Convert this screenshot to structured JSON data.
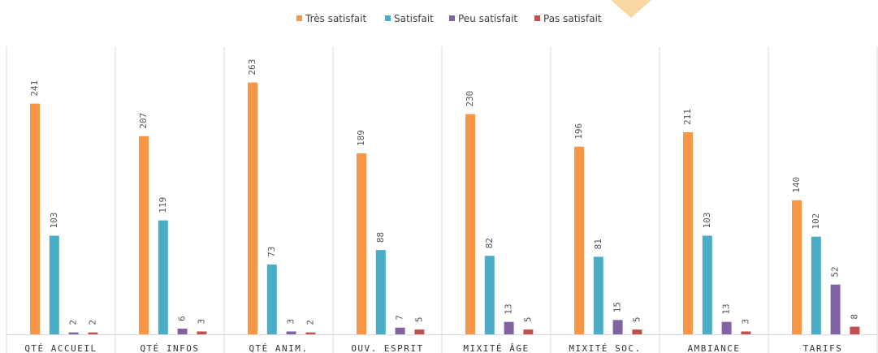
{
  "chart_data": {
    "type": "bar",
    "categories": [
      "QTÉ ACCUEIL",
      "QTÉ INFOS",
      "QTÉ ANIM.",
      "OUV. ESPRIT",
      "MIXITÉ ÂGE",
      "MIXITÉ SOC.",
      "AMBIANCE",
      "TARIFS"
    ],
    "series": [
      {
        "name": "Très satisfait",
        "color": "#F79646",
        "values": [
          241,
          207,
          263,
          189,
          230,
          196,
          211,
          140
        ]
      },
      {
        "name": "Satisfait",
        "color": "#4BACC6",
        "values": [
          103,
          119,
          73,
          88,
          82,
          81,
          103,
          102
        ]
      },
      {
        "name": "Peu satisfait",
        "color": "#8064A2",
        "values": [
          2,
          6,
          3,
          7,
          13,
          15,
          13,
          52
        ]
      },
      {
        "name": "Pas satisfait",
        "color": "#C0504D",
        "values": [
          2,
          3,
          2,
          5,
          5,
          5,
          3,
          8
        ]
      }
    ],
    "ylim": [
      0,
      290
    ],
    "legend_position": "top-center",
    "data_labels": true,
    "grid": false,
    "decoration_color": "#FAD7A0"
  }
}
